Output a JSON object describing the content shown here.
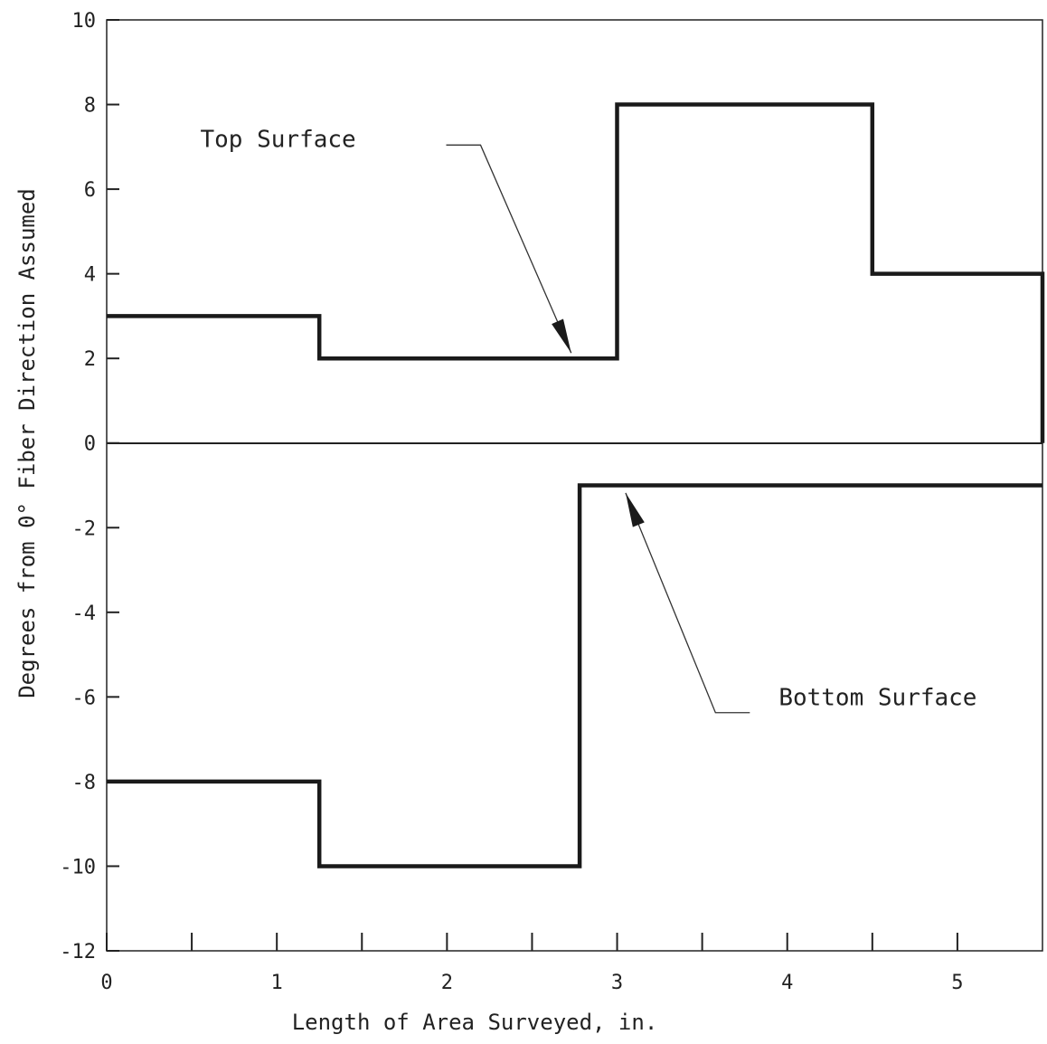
{
  "chart_data": {
    "type": "line",
    "step": true,
    "xlabel": "Length of Area Surveyed, in.",
    "ylabel": "Degrees from 0° Fiber Direction Assumed",
    "xlim": [
      0,
      5.5
    ],
    "ylim": [
      -12,
      10
    ],
    "x_ticks": [
      0,
      1,
      2,
      3,
      4,
      5
    ],
    "x_minor_ticks": [
      0.5,
      1.5,
      2.5,
      3.5,
      4.5
    ],
    "y_ticks": [
      10,
      8,
      6,
      4,
      2,
      0,
      -2,
      -4,
      -6,
      -8,
      -10,
      -12
    ],
    "x_tick_labels": [
      "0",
      "1",
      "2",
      "3",
      "4",
      "5"
    ],
    "y_tick_labels": [
      "10",
      "8",
      "6",
      "4",
      "2",
      "0",
      "-2",
      "-4",
      "-6",
      "-8",
      "-10",
      "-12"
    ],
    "grid": false,
    "zero_line": true,
    "series": [
      {
        "name": "Top Surface",
        "x": [
          0,
          1.25,
          1.25,
          3.0,
          3.0,
          4.5,
          4.5,
          5.5,
          5.5
        ],
        "y": [
          3,
          3,
          2,
          2,
          8,
          8,
          4,
          4,
          0
        ]
      },
      {
        "name": "Bottom Surface",
        "x": [
          0,
          1.25,
          1.25,
          2.78,
          2.78,
          5.5
        ],
        "y": [
          -8,
          -8,
          -10,
          -10,
          -1,
          -1
        ]
      }
    ],
    "annotations": [
      {
        "text": "Top Surface",
        "label_at": [
          0.55,
          7.0
        ],
        "arrow_to": [
          2.73,
          2.0
        ]
      },
      {
        "text": "Bottom Surface",
        "label_at": [
          3.95,
          -6.2
        ],
        "arrow_to": [
          3.05,
          -1.05
        ]
      }
    ]
  }
}
